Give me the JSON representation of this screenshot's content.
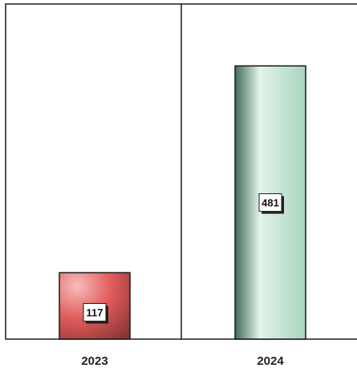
{
  "chart_data": {
    "type": "bar",
    "categories": [
      "2023",
      "2024"
    ],
    "values": [
      117,
      481
    ],
    "data_labels": [
      "117",
      "481"
    ],
    "ylim": [
      0,
      590
    ],
    "grid": false,
    "title": "",
    "xlabel": "",
    "ylabel": "",
    "colors": {
      "2023": {
        "light": "#f7bcbc",
        "mid": "#e05c5a",
        "dark": "#7a2f2f"
      },
      "2024": {
        "light": "#e4f3ea",
        "mid": "#a7d5bd",
        "dark": "#3f6f58"
      }
    }
  }
}
